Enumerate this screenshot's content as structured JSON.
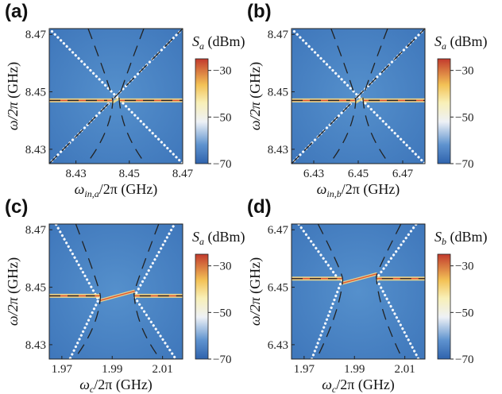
{
  "chart_data": [
    {
      "panel_label": "(a)",
      "type": "heatmap",
      "xlabel": "ω_in,a/2π (GHz)",
      "ylabel": "ω/2π (GHz)",
      "xlim": [
        8.42,
        8.47
      ],
      "ylim": [
        8.425,
        8.472
      ],
      "xticks": [
        {
          "v": 8.43,
          "label": "8.43"
        },
        {
          "v": 8.45,
          "label": "8.45"
        },
        {
          "v": 8.47,
          "label": "8.47"
        }
      ],
      "yticks": [
        {
          "v": 8.43,
          "label": "8.43"
        },
        {
          "v": 8.45,
          "label": "8.45"
        },
        {
          "v": 8.47,
          "label": "8.47"
        }
      ],
      "colorbar": {
        "title": "S_a (dBm)",
        "range": [
          -70,
          -25
        ],
        "ticks": [
          {
            "v": -30,
            "label": "−30"
          },
          {
            "v": -50,
            "label": "−50"
          },
          {
            "v": -70,
            "label": "−70"
          }
        ]
      },
      "resonance": 8.447,
      "sweep": "probe",
      "gap": [
        8.4435,
        8.4465
      ]
    },
    {
      "panel_label": "(b)",
      "type": "heatmap",
      "xlabel": "ω_in,b/2π (GHz)",
      "ylabel": "ω/2π (GHz)",
      "xlim": [
        6.42,
        6.48
      ],
      "ylim": [
        8.425,
        8.472
      ],
      "xticks": [
        {
          "v": 6.43,
          "label": "6.43"
        },
        {
          "v": 6.45,
          "label": "6.45"
        },
        {
          "v": 6.47,
          "label": "6.47"
        }
      ],
      "yticks": [
        {
          "v": 8.43,
          "label": "8.43"
        },
        {
          "v": 8.45,
          "label": "8.45"
        },
        {
          "v": 8.47,
          "label": "8.47"
        }
      ],
      "colorbar": {
        "title": "S_a (dBm)",
        "range": [
          -70,
          -25
        ],
        "ticks": [
          {
            "v": -30,
            "label": "−30"
          },
          {
            "v": -50,
            "label": "−50"
          },
          {
            "v": -70,
            "label": "−70"
          }
        ]
      },
      "resonance": 8.447,
      "sweep": "probe",
      "gap": [
        6.4485,
        6.4525
      ]
    },
    {
      "panel_label": "(c)",
      "type": "heatmap",
      "xlabel": "ω_c/2π (GHz)",
      "ylabel": "ω/2π (GHz)",
      "xlim": [
        1.965,
        2.018
      ],
      "ylim": [
        8.425,
        8.472
      ],
      "xticks": [
        {
          "v": 1.97,
          "label": "1.97"
        },
        {
          "v": 1.99,
          "label": "1.99"
        },
        {
          "v": 2.01,
          "label": "2.01"
        }
      ],
      "yticks": [
        {
          "v": 8.43,
          "label": "8.43"
        },
        {
          "v": 8.45,
          "label": "8.45"
        },
        {
          "v": 8.47,
          "label": "8.47"
        }
      ],
      "colorbar": {
        "title": "S_a (dBm)",
        "range": [
          -70,
          -25
        ],
        "ticks": [
          {
            "v": -30,
            "label": "−30"
          },
          {
            "v": -50,
            "label": "−50"
          },
          {
            "v": -70,
            "label": "−70"
          }
        ]
      },
      "resonance": 8.447,
      "sweep": "pump",
      "gap": [
        1.985,
        1.999
      ]
    },
    {
      "panel_label": "(d)",
      "type": "heatmap",
      "xlabel": "ω_c/2π (GHz)",
      "ylabel": "ω/2π (GHz)",
      "xlim": [
        1.965,
        2.018
      ],
      "ylim": [
        6.425,
        6.472
      ],
      "xticks": [
        {
          "v": 1.97,
          "label": "1.97"
        },
        {
          "v": 1.99,
          "label": "1.99"
        },
        {
          "v": 2.01,
          "label": "2.01"
        }
      ],
      "yticks": [
        {
          "v": 6.43,
          "label": "6.43"
        },
        {
          "v": 6.45,
          "label": "6.45"
        },
        {
          "v": 6.47,
          "label": "6.47"
        }
      ],
      "colorbar": {
        "title": "S_b (dBm)",
        "range": [
          -70,
          -25
        ],
        "ticks": [
          {
            "v": -30,
            "label": "−30"
          },
          {
            "v": -50,
            "label": "−50"
          },
          {
            "v": -70,
            "label": "−70"
          }
        ]
      },
      "resonance": 6.453,
      "sweep": "pump",
      "gap": [
        1.985,
        1.999
      ]
    }
  ]
}
